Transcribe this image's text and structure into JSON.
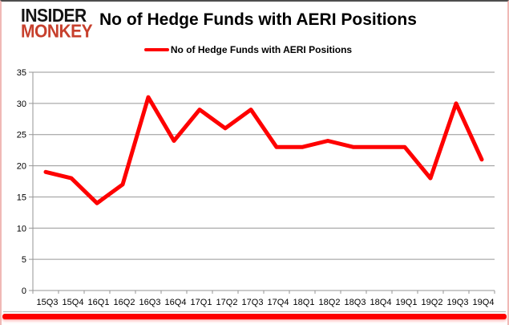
{
  "logo": {
    "line1": "INSIDER",
    "line2": "MONKEY"
  },
  "title": "No of Hedge Funds with AERI Positions",
  "legend": {
    "label": "No of Hedge Funds with AERI Positions"
  },
  "colors": {
    "line": "#fe0000",
    "grid": "#969696",
    "axis": "#969696",
    "tick_text": "#000000",
    "logo_black": "#141414",
    "logo_red": "#c7402d",
    "border_pink": "#f0b9b6",
    "footer_red": "#fe0000"
  },
  "chart_data": {
    "type": "line",
    "title": "No of Hedge Funds with AERI Positions",
    "xlabel": "",
    "ylabel": "",
    "categories": [
      "15Q3",
      "15Q4",
      "16Q1",
      "16Q2",
      "16Q3",
      "16Q4",
      "17Q1",
      "17Q2",
      "17Q3",
      "17Q4",
      "18Q1",
      "18Q2",
      "18Q3",
      "18Q4",
      "19Q1",
      "19Q2",
      "19Q3",
      "19Q4"
    ],
    "series": [
      {
        "name": "No of Hedge Funds with AERI Positions",
        "color": "#fe0000",
        "values": [
          19,
          18,
          14,
          17,
          31,
          24,
          29,
          26,
          29,
          23,
          23,
          24,
          23,
          23,
          23,
          18,
          30,
          21
        ]
      }
    ],
    "ylim": [
      0,
      35
    ],
    "yticks": [
      0,
      5,
      10,
      15,
      20,
      25,
      30,
      35
    ],
    "grid": true,
    "legend_position": "top-center"
  }
}
